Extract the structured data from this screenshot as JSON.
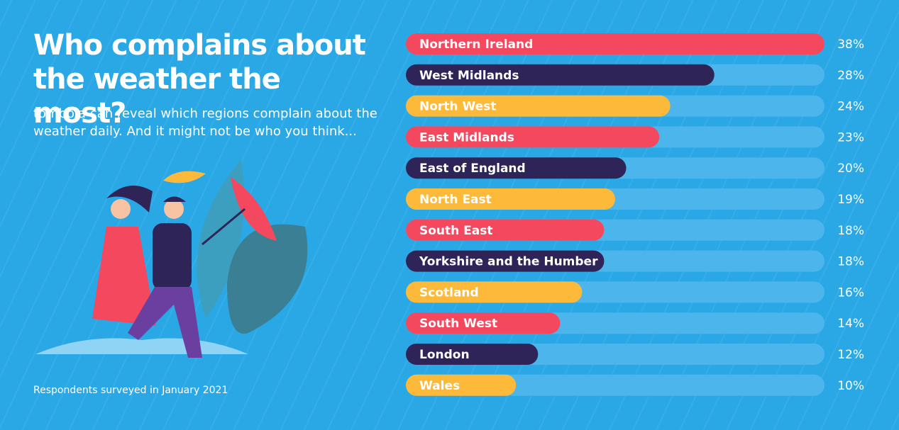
{
  "chart_data": {
    "type": "bar",
    "orientation": "horizontal",
    "title": "Who complains about the weather the most?",
    "subtitle": "tombola can reveal which regions complain about the weather daily. And it might not be who you think...",
    "note": "Respondents surveyed in January 2021",
    "categories": [
      "Northern Ireland",
      "West Midlands",
      "North West",
      "East Midlands",
      "East of England",
      "North East",
      "South East",
      "Yorkshire and the Humber",
      "Scotland",
      "South West",
      "London",
      "Wales"
    ],
    "values": [
      38,
      28,
      24,
      23,
      20,
      19,
      18,
      18,
      16,
      14,
      12,
      10
    ],
    "value_labels": [
      "38%",
      "28%",
      "24%",
      "23%",
      "20%",
      "19%",
      "18%",
      "18%",
      "16%",
      "14%",
      "12%",
      "10%"
    ],
    "colors": [
      "#f4485f",
      "#2e2457",
      "#fdb93a",
      "#f4485f",
      "#2e2457",
      "#fdb93a",
      "#f4485f",
      "#2e2457",
      "#fdb93a",
      "#f4485f",
      "#2e2457",
      "#fdb93a"
    ],
    "track_color": "#4cb6ec",
    "xlim": [
      0,
      38
    ]
  }
}
